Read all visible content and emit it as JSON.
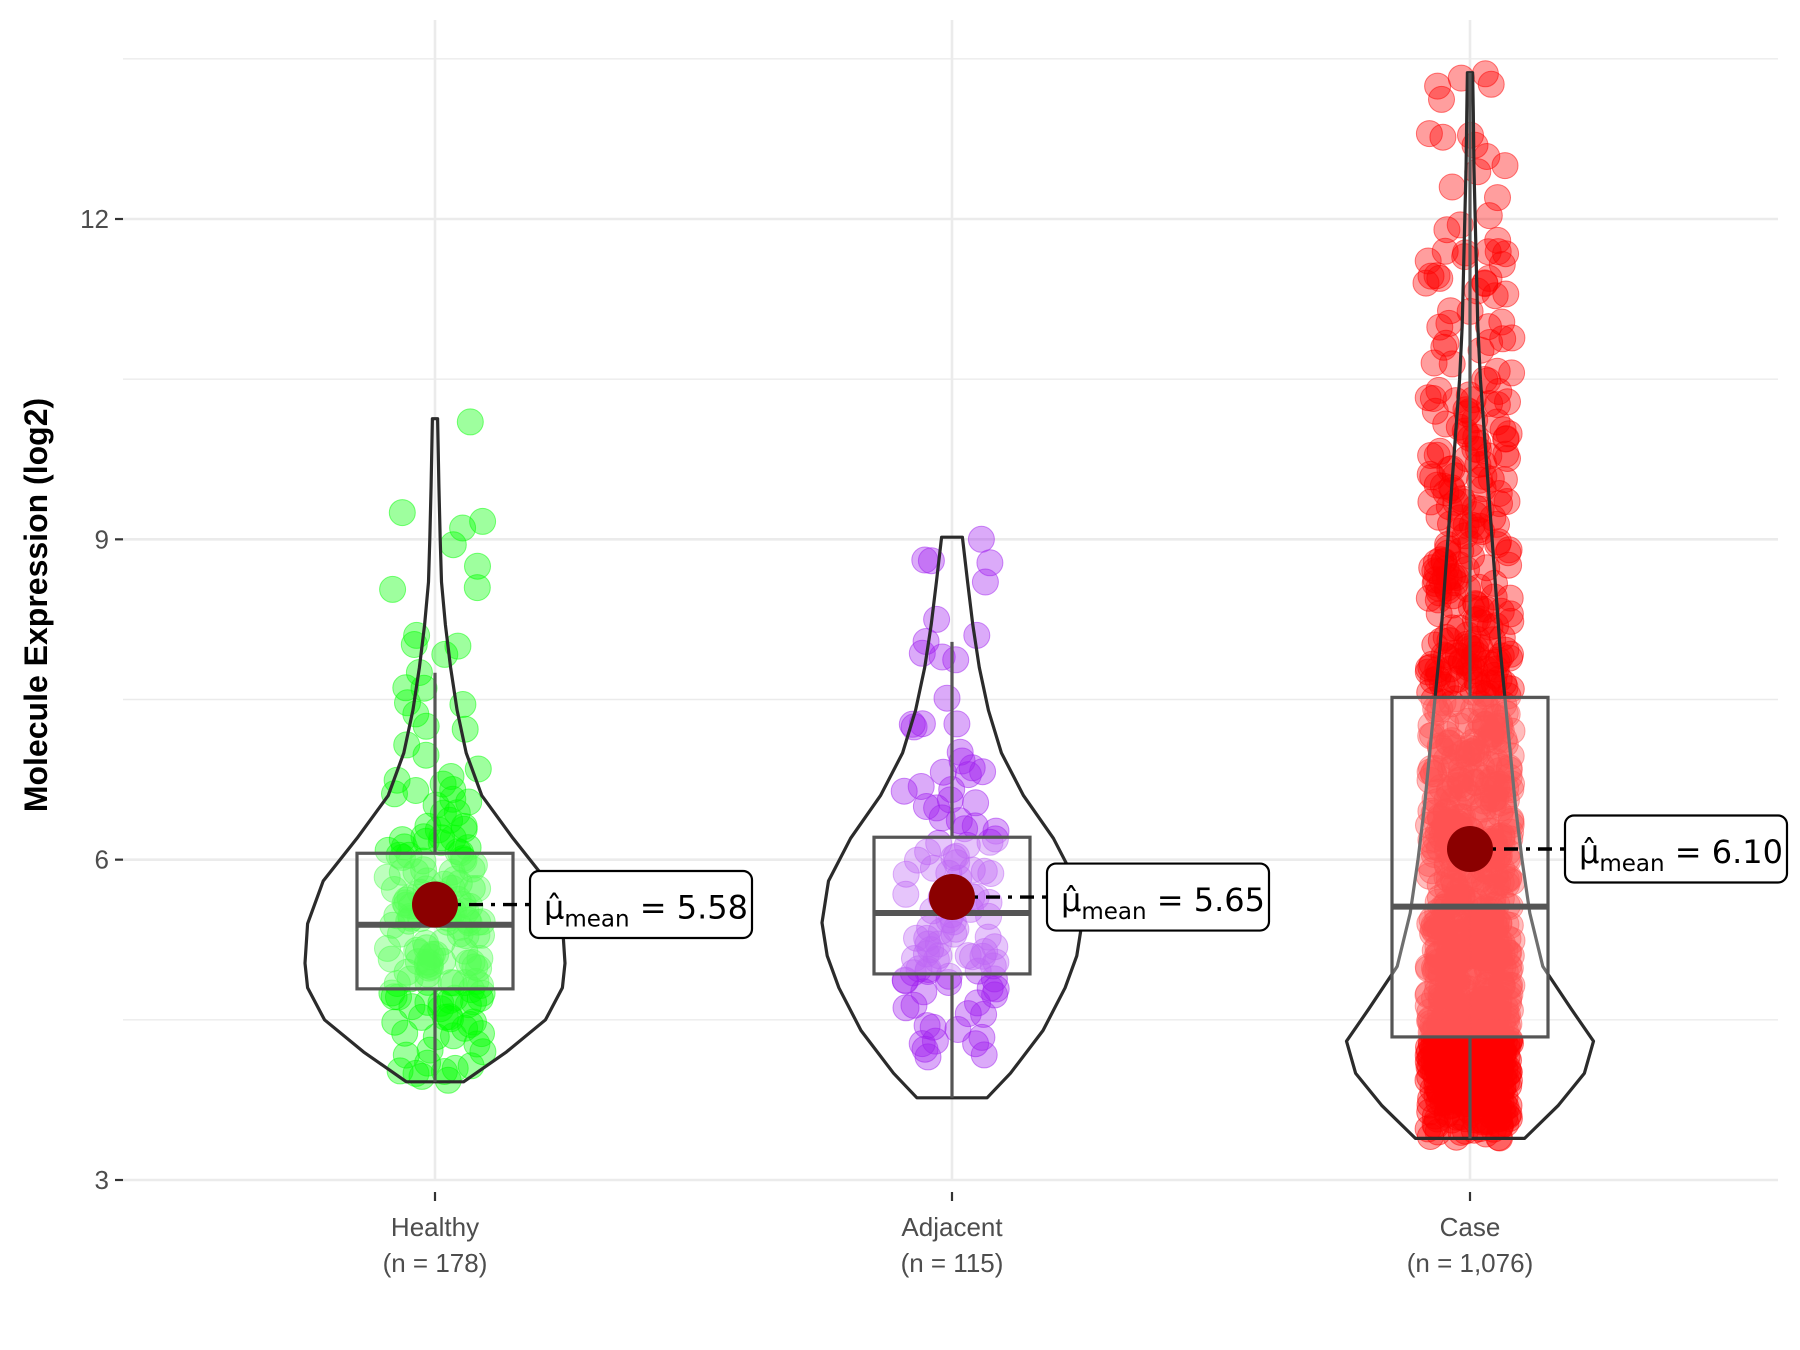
{
  "chart_data": {
    "type": "violin-box-scatter",
    "title": "",
    "xlabel": "",
    "ylabel": "Molecule Expression (log2)",
    "ylim": [
      3,
      13.5
    ],
    "yticks": [
      3,
      6,
      9,
      12
    ],
    "ytick_labels": [
      "3",
      "6",
      "9",
      "12"
    ],
    "minor_gridlines": [
      4.5,
      7.5,
      10.5,
      13.5
    ],
    "grid": true,
    "mean_symbol": "μ̂",
    "mean_subscript": "mean",
    "categories": [
      "Healthy",
      "Adjacent",
      "Case"
    ],
    "category_labels": [
      {
        "name": "Healthy",
        "count": "(n = 178)"
      },
      {
        "name": "Adjacent",
        "count": "(n = 115)"
      },
      {
        "name": "Case",
        "count": "(n = 1,076)"
      }
    ],
    "groups": [
      {
        "name": "Healthy",
        "n": 178,
        "color": "#00FF00",
        "mean": 5.58,
        "mean_label": "5.58",
        "median": 5.39,
        "q1": 4.79,
        "q3": 6.06,
        "whisker_low": 3.92,
        "whisker_high": 7.75,
        "violin_min": 3.92,
        "violin_max": 10.13,
        "violin_profile": [
          [
            3.92,
            0.22
          ],
          [
            4.2,
            0.55
          ],
          [
            4.5,
            0.85
          ],
          [
            4.8,
            0.98
          ],
          [
            5.03,
            1.0
          ],
          [
            5.4,
            0.98
          ],
          [
            5.8,
            0.86
          ],
          [
            6.2,
            0.6
          ],
          [
            6.6,
            0.36
          ],
          [
            7.0,
            0.24
          ],
          [
            7.4,
            0.17
          ],
          [
            7.8,
            0.12
          ],
          [
            8.2,
            0.08
          ],
          [
            8.6,
            0.05
          ],
          [
            9.0,
            0.04
          ],
          [
            9.5,
            0.03
          ],
          [
            10.13,
            0.02
          ]
        ],
        "outliers": [
          10.1,
          9.25,
          8.95,
          8.1,
          8.0
        ]
      },
      {
        "name": "Adjacent",
        "n": 115,
        "color": "#A020F0",
        "mean": 5.65,
        "mean_label": "5.65",
        "median": 5.5,
        "q1": 4.93,
        "q3": 6.21,
        "whisker_low": 3.77,
        "whisker_high": 8.04,
        "violin_min": 3.77,
        "violin_max": 9.02,
        "violin_profile": [
          [
            3.77,
            0.27
          ],
          [
            4.0,
            0.45
          ],
          [
            4.4,
            0.7
          ],
          [
            4.8,
            0.87
          ],
          [
            5.1,
            0.96
          ],
          [
            5.41,
            1.0
          ],
          [
            5.8,
            0.95
          ],
          [
            6.2,
            0.78
          ],
          [
            6.6,
            0.55
          ],
          [
            7.0,
            0.38
          ],
          [
            7.4,
            0.28
          ],
          [
            7.8,
            0.21
          ],
          [
            8.2,
            0.16
          ],
          [
            8.6,
            0.12
          ],
          [
            9.02,
            0.08
          ]
        ],
        "outliers": [
          9.0,
          8.8,
          8.6,
          8.25,
          8.1
        ]
      },
      {
        "name": "Case",
        "n": 1076,
        "color": "#FF0000",
        "mean": 6.1,
        "mean_label": "6.10",
        "median": 5.56,
        "q1": 4.34,
        "q3": 7.52,
        "whisker_low": 3.39,
        "whisker_high": 13.37,
        "violin_min": 3.39,
        "violin_max": 13.37,
        "violin_profile": [
          [
            3.39,
            0.42
          ],
          [
            3.7,
            0.68
          ],
          [
            4.0,
            0.88
          ],
          [
            4.3,
            0.95
          ],
          [
            4.6,
            0.78
          ],
          [
            5.0,
            0.56
          ],
          [
            5.5,
            0.46
          ],
          [
            6.0,
            0.4
          ],
          [
            6.5,
            0.35
          ],
          [
            7.0,
            0.31
          ],
          [
            7.5,
            0.27
          ],
          [
            8.0,
            0.23
          ],
          [
            8.5,
            0.2
          ],
          [
            9.0,
            0.17
          ],
          [
            9.5,
            0.14
          ],
          [
            10.0,
            0.11
          ],
          [
            10.5,
            0.08
          ],
          [
            11.0,
            0.06
          ],
          [
            11.5,
            0.05
          ],
          [
            12.0,
            0.04
          ],
          [
            12.5,
            0.03
          ],
          [
            13.0,
            0.025
          ],
          [
            13.37,
            0.02
          ]
        ],
        "outliers": [
          13.36,
          13.12,
          12.5,
          12.3,
          12.2,
          11.9,
          11.8,
          11.4
        ]
      }
    ]
  }
}
